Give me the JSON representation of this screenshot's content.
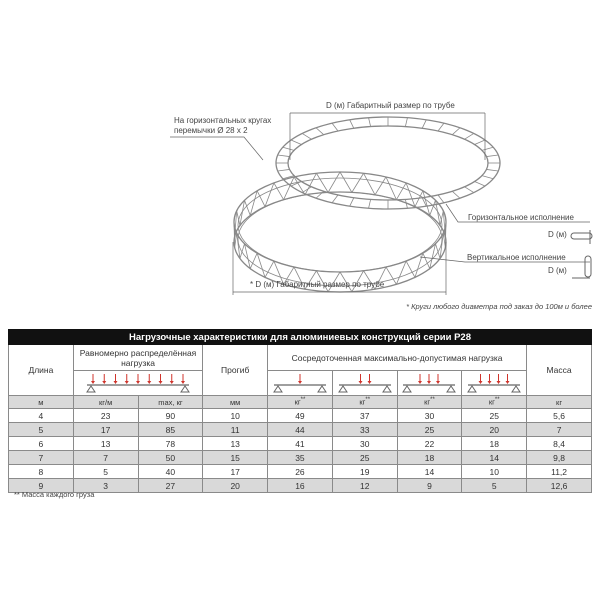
{
  "diagram": {
    "top_dimension": "D (м)  Габаритный размер по трубе",
    "bottom_dimension": "* D (м)  Габаритный размер по трубе",
    "crossbar_note_line1": "На горизонтальных кругах",
    "crossbar_note_line2": "перемычки Ø 28 x 2",
    "horizontal_label": "Горизонтальное исполнение",
    "horizontal_d": "D (м)",
    "vertical_label": "Вертикальное исполнение",
    "vertical_d": "D (м)",
    "custom_note": "* Круги любого диаметра под заказ до 100м и более"
  },
  "table": {
    "title": "Нагрузочные характеристики для алюминиевых конструкций серии Р28",
    "headers": {
      "length": "Длина",
      "distributed": "Равномерно распределённая нагрузка",
      "deflection": "Прогиб",
      "concentrated": "Сосредоточенная максимально-допустимая нагрузка",
      "mass": "Масса"
    },
    "units": [
      "м",
      "кг/м",
      "max, кг",
      "мм",
      "кг",
      "кг",
      "кг",
      "кг",
      "кг"
    ],
    "units_mark": "**",
    "rows": [
      [
        "4",
        "23",
        "90",
        "10",
        "49",
        "37",
        "30",
        "25",
        "5,6"
      ],
      [
        "5",
        "17",
        "85",
        "11",
        "44",
        "33",
        "25",
        "20",
        "7"
      ],
      [
        "6",
        "13",
        "78",
        "13",
        "41",
        "30",
        "22",
        "18",
        "8,4"
      ],
      [
        "7",
        "7",
        "50",
        "15",
        "35",
        "25",
        "18",
        "14",
        "9,8"
      ],
      [
        "8",
        "5",
        "40",
        "17",
        "26",
        "19",
        "14",
        "10",
        "11,2"
      ],
      [
        "9",
        "3",
        "27",
        "20",
        "16",
        "12",
        "9",
        "5",
        "12,6"
      ]
    ],
    "load_arrow_color": "#d0342c"
  },
  "footnote": "** Масса каждого груза"
}
